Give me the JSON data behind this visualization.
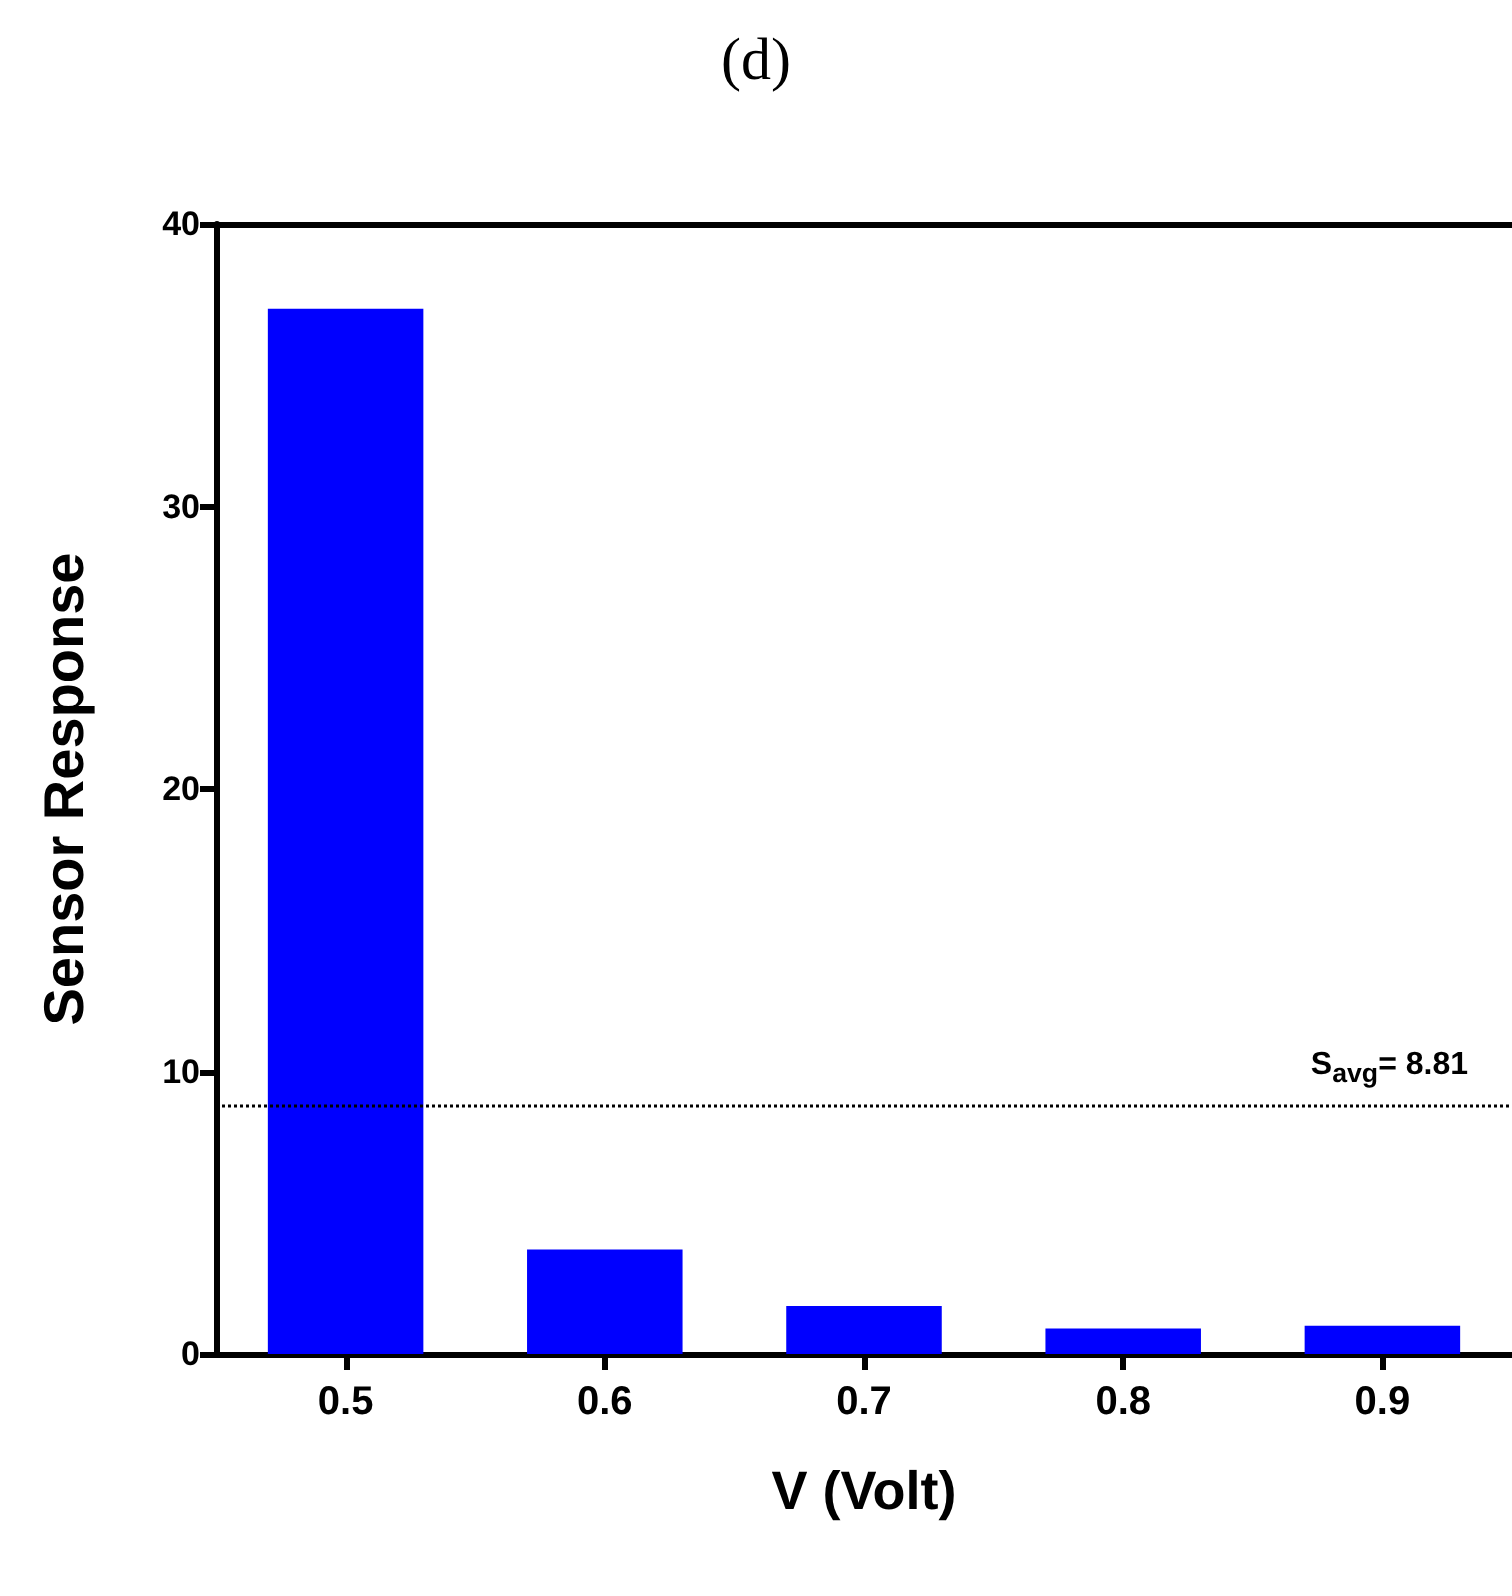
{
  "chart_data": {
    "type": "bar",
    "title": "(d)",
    "xlabel": "V (Volt)",
    "ylabel": "Sensor Response",
    "categories": [
      "0.5",
      "0.6",
      "0.7",
      "0.8",
      "0.9"
    ],
    "values": [
      37,
      3.7,
      1.7,
      0.9,
      1.0
    ],
    "color": "#0000ff",
    "ylim": [
      0,
      40
    ],
    "yticks": [
      0,
      10,
      20,
      30,
      40
    ],
    "grid": false,
    "ref_lines": [
      {
        "axis": "y",
        "value": 8.81,
        "label": "S$_{avg}$= 8.81",
        "color": "#000000",
        "line_style": "dotted"
      }
    ]
  }
}
